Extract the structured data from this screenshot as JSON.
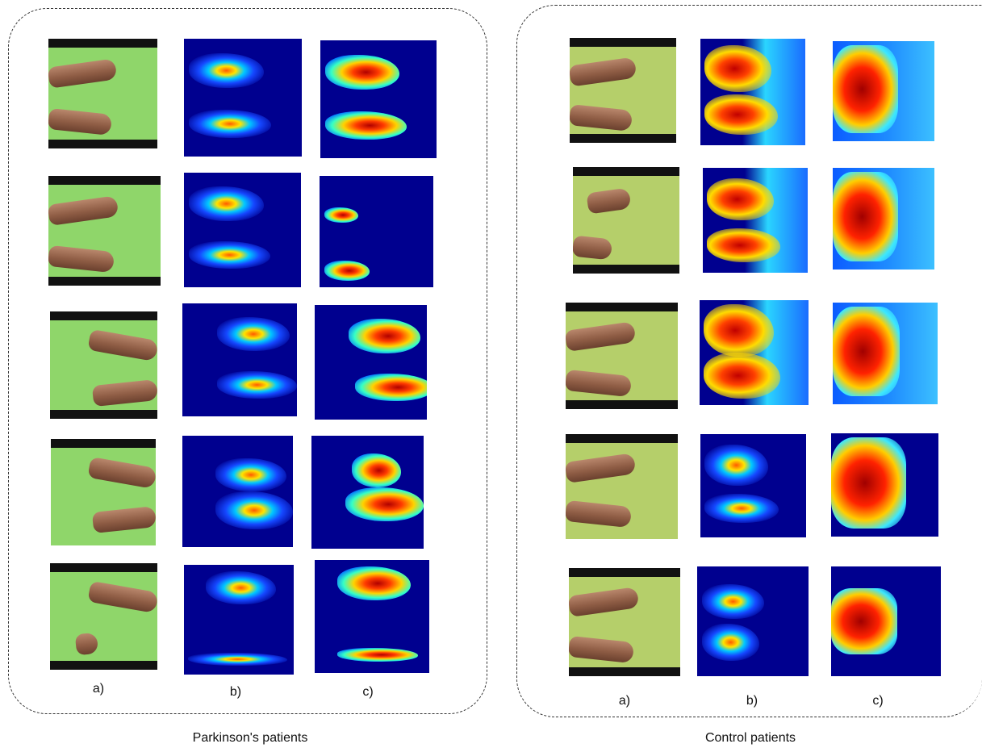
{
  "groups": [
    {
      "caption": "Parkinson's patients",
      "column_labels": [
        "a)",
        "b)",
        "c)"
      ],
      "rows": 5
    },
    {
      "caption": "Control patients",
      "column_labels": [
        "a)",
        "b)",
        "c)"
      ],
      "rows": 5
    }
  ],
  "colors": {
    "frame": "#333333",
    "photo_background": "#8fd66a",
    "heatmap_background": "#00008f",
    "heatmap_hot": "#b00000"
  }
}
